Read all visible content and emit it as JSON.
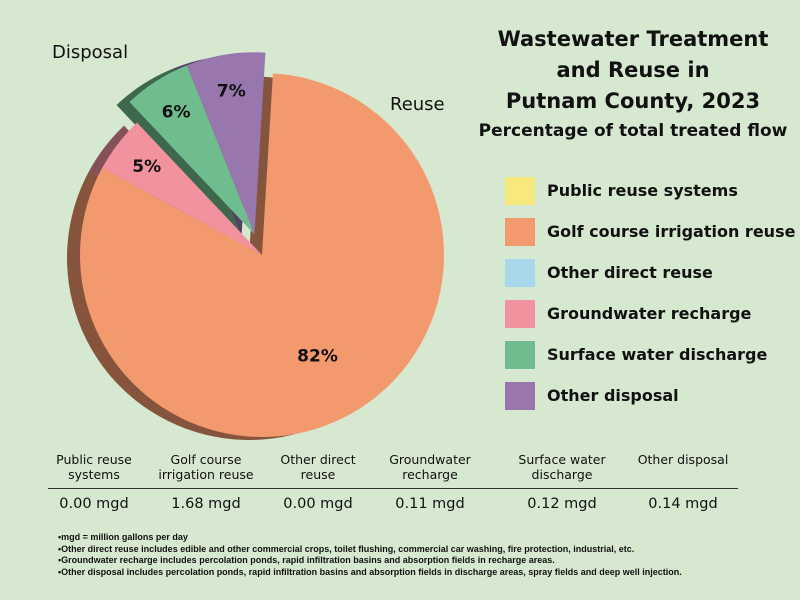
{
  "chart_data": {
    "type": "pie",
    "title_lines": [
      "Wastewater Treatment",
      "and Reuse in",
      "Putnam County, 2023"
    ],
    "subtitle": "Percentage of total treated flow",
    "slices": [
      {
        "label": "Public reuse systems",
        "value": 0,
        "percent_label": "",
        "group": "Reuse",
        "color": "#f8e97d"
      },
      {
        "label": "Golf course irrigation reuse",
        "value": 82,
        "percent_label": "82%",
        "group": "Reuse",
        "color": "#f3996e"
      },
      {
        "label": "Other direct reuse",
        "value": 0,
        "percent_label": "",
        "group": "Reuse",
        "color": "#a9d7ec"
      },
      {
        "label": "Groundwater recharge",
        "value": 5,
        "percent_label": "5%",
        "group": "Reuse",
        "color": "#f2929e"
      },
      {
        "label": "Surface water discharge",
        "value": 6,
        "percent_label": "6%",
        "group": "Disposal",
        "color": "#6fbd8e"
      },
      {
        "label": "Other disposal",
        "value": 7,
        "percent_label": "7%",
        "group": "Disposal",
        "color": "#9777ad"
      }
    ],
    "group_labels": {
      "reuse": "Reuse",
      "disposal": "Disposal"
    },
    "legend_position": "right"
  },
  "table": {
    "headers": [
      [
        "Public reuse",
        "systems"
      ],
      [
        "Golf course",
        "irrigation reuse"
      ],
      [
        "Other direct",
        "reuse"
      ],
      [
        "Groundwater",
        "recharge"
      ],
      [
        "Surface water",
        "discharge"
      ],
      [
        "Other disposal"
      ]
    ],
    "values": [
      "0.00 mgd",
      "1.68 mgd",
      "0.00 mgd",
      "0.11 mgd",
      "0.12 mgd",
      "0.14 mgd"
    ]
  },
  "notes": [
    "mgd = million gallons per day",
    "Other direct reuse includes edible and other commercial crops, toilet flushing, commercial car washing, fire protection, industrial, etc.",
    "Groundwater recharge includes percolation ponds, rapid infiltration basins and absorption fields in recharge areas.",
    "Other disposal includes percolation ponds, rapid infiltration basins and absorption fields in discharge areas, spray fields and deep well injection."
  ]
}
